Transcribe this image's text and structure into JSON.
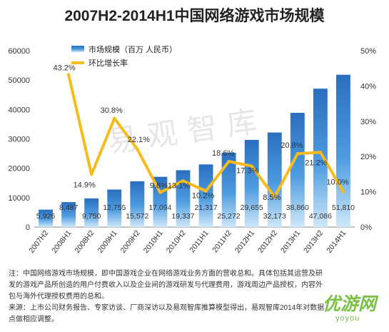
{
  "title": "2007H2-2014H1中国网络游戏市场规模",
  "watermark": "易观智库",
  "notes": {
    "line1": "注：中国网络游戏市场规模，即中国游戏企业在网络游戏业务方面的营收总和。具体包括其运营及研",
    "line2": "发的游戏产品所创造的用户付费收入以及企业间的游戏研发与代理费用，游戏周边产品授权，内容外",
    "line3": "包与海外代理授权费用的总和。",
    "line4": "来源：上市公司财务报告、专家访谈、厂商深访以及易观智库推算模型得出，易观智库2014年对数据",
    "line5": "点做相应调整。"
  },
  "logo": {
    "text": "优游网",
    "sub": "yoyou"
  },
  "colors": {
    "bar_top": "#2f79c9",
    "bar_mid": "#59a7e4",
    "bar_light": "#bfe0f7",
    "line": "#f6bb1d"
  },
  "chart_data": {
    "type": "bar+line",
    "categories": [
      "2007H2",
      "2008H1",
      "2008H2",
      "2009H1",
      "2009H2",
      "2010H1",
      "2010H2",
      "2011H1",
      "2011H2",
      "2012H1",
      "2012H2",
      "2013H1",
      "2013H2",
      "2014H1"
    ],
    "series": [
      {
        "name": "市场规模（百万 人民币）",
        "type": "bar",
        "axis": "left",
        "values": [
          5926,
          8487,
          9750,
          12755,
          15572,
          17094,
          19337,
          21317,
          25272,
          29655,
          32173,
          38860,
          47086,
          51810
        ],
        "labels": [
          "5,926",
          "8,487",
          "9,750",
          "12,755",
          "15,572",
          "17,094",
          "19,337",
          "21,317",
          "25,272",
          "29,655",
          "32,173",
          "38,860",
          "47,086",
          "51,810"
        ]
      },
      {
        "name": "环比增长率",
        "type": "line",
        "axis": "right",
        "values": [
          null,
          43.2,
          14.9,
          30.8,
          22.1,
          9.8,
          13.1,
          10.2,
          18.6,
          17.3,
          8.5,
          20.8,
          21.2,
          10.0
        ],
        "labels": [
          "",
          "43.2%",
          "14.9%",
          "30.8%",
          "22.1%",
          "9.8%",
          "13.1%",
          "10.2%",
          "18.6%",
          "17.3%",
          "8.5%",
          "20.8%",
          "21.2%",
          "10.0%"
        ]
      }
    ],
    "y_left": {
      "min": 0,
      "max": 60000,
      "ticks": [
        "0",
        "10000",
        "20000",
        "30000",
        "40000",
        "50000",
        "60000"
      ]
    },
    "y_right": {
      "min": 0,
      "max": 50,
      "ticks": [
        "0%",
        "10%",
        "20%",
        "30%",
        "40%",
        "50%"
      ]
    },
    "legend_position": "top-left",
    "grid": false
  }
}
